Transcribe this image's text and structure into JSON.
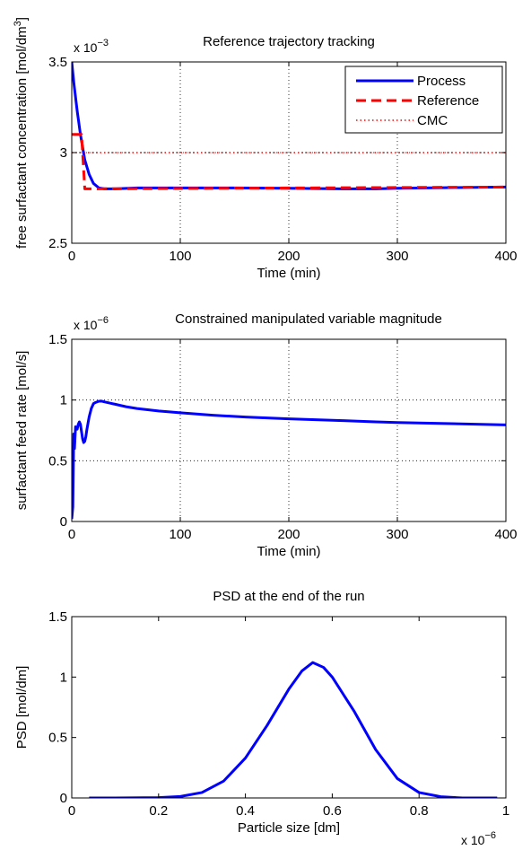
{
  "chart_data": [
    {
      "type": "line",
      "title": "Reference trajectory tracking",
      "xlabel": "Time (min)",
      "ylabel": "free surfactant concentration [mol/dm",
      "ylabel_sup": "3",
      "ylabel_end": "]",
      "y_multiplier": "x 10",
      "y_multiplier_exp": "−3",
      "xlim": [
        0,
        400
      ],
      "ylim": [
        2.5,
        3.5
      ],
      "xticks": [
        0,
        100,
        200,
        300,
        400
      ],
      "xtick_labels": [
        "0",
        "100",
        "200",
        "300",
        "400"
      ],
      "yticks": [
        2.5,
        3,
        3.5
      ],
      "ytick_labels": [
        "2.5",
        "3",
        "3.5"
      ],
      "grid": true,
      "legend_position": "top-right",
      "series": [
        {
          "name": "Process",
          "color": "#0000ff",
          "style": "solid",
          "x": [
            0,
            2,
            5,
            8,
            12,
            16,
            20,
            25,
            30,
            40,
            60,
            100,
            150,
            200,
            250,
            280,
            300,
            350,
            400
          ],
          "y": [
            3.5,
            3.38,
            3.23,
            3.1,
            2.96,
            2.88,
            2.83,
            2.805,
            2.8,
            2.8,
            2.805,
            2.805,
            2.805,
            2.803,
            2.8,
            2.8,
            2.803,
            2.807,
            2.81
          ]
        },
        {
          "name": "Reference",
          "color": "#ff0000",
          "style": "dashed",
          "x": [
            0,
            9,
            12,
            400
          ],
          "y": [
            3.1,
            3.1,
            2.8,
            2.81
          ]
        },
        {
          "name": "CMC",
          "color": "#ff0000",
          "style": "dotted",
          "x": [
            0,
            400
          ],
          "y": [
            3.0,
            3.0
          ]
        }
      ]
    },
    {
      "type": "line",
      "title": "Constrained manipulated variable magnitude",
      "xlabel": "Time (min)",
      "ylabel": "surfactant feed rate [mol/s]",
      "y_multiplier": "x 10",
      "y_multiplier_exp": "−6",
      "xlim": [
        0,
        400
      ],
      "ylim": [
        0,
        1.5
      ],
      "xticks": [
        0,
        100,
        200,
        300,
        400
      ],
      "xtick_labels": [
        "0",
        "100",
        "200",
        "300",
        "400"
      ],
      "yticks": [
        0,
        0.5,
        1,
        1.5
      ],
      "ytick_labels": [
        "0",
        "0.5",
        "1",
        "1.5"
      ],
      "grid": true,
      "series": [
        {
          "color": "#0000ff",
          "style": "solid",
          "x": [
            0,
            1,
            1.8,
            2.5,
            3.5,
            5,
            6,
            7,
            8,
            9,
            10,
            11,
            12,
            13,
            14,
            16,
            18,
            20,
            22,
            25,
            28,
            30,
            35,
            40,
            50,
            60,
            80,
            100,
            130,
            160,
            200,
            250,
            280,
            300,
            350,
            400
          ],
          "y": [
            0.02,
            0.12,
            0.72,
            0.6,
            0.78,
            0.76,
            0.8,
            0.82,
            0.8,
            0.74,
            0.68,
            0.65,
            0.66,
            0.7,
            0.76,
            0.86,
            0.93,
            0.97,
            0.98,
            0.99,
            0.99,
            0.985,
            0.975,
            0.965,
            0.945,
            0.93,
            0.91,
            0.895,
            0.875,
            0.86,
            0.845,
            0.83,
            0.82,
            0.815,
            0.805,
            0.795
          ]
        }
      ]
    },
    {
      "type": "line",
      "title": "PSD at the end of the run",
      "xlabel": "Particle size [dm]",
      "ylabel": "PSD [mol/dm]",
      "x_multiplier": "x 10",
      "x_multiplier_exp": "−6",
      "xlim": [
        0,
        1
      ],
      "ylim": [
        0,
        1.5
      ],
      "xticks": [
        0,
        0.2,
        0.4,
        0.6,
        0.8,
        1
      ],
      "xtick_labels": [
        "0",
        "0.2",
        "0.4",
        "0.6",
        "0.8",
        "1"
      ],
      "yticks": [
        0,
        0.5,
        1,
        1.5
      ],
      "ytick_labels": [
        "0",
        "0.5",
        "1",
        "1.5"
      ],
      "grid": false,
      "series": [
        {
          "color": "#0000ff",
          "style": "solid",
          "x": [
            0.04,
            0.1,
            0.2,
            0.25,
            0.3,
            0.35,
            0.4,
            0.45,
            0.5,
            0.53,
            0.555,
            0.58,
            0.6,
            0.65,
            0.7,
            0.75,
            0.8,
            0.85,
            0.9,
            0.95,
            0.98
          ],
          "y": [
            0.0,
            0.0,
            0.003,
            0.012,
            0.045,
            0.14,
            0.33,
            0.6,
            0.9,
            1.05,
            1.12,
            1.08,
            1.0,
            0.72,
            0.4,
            0.16,
            0.045,
            0.01,
            0.0,
            0.0,
            0.0
          ]
        }
      ]
    }
  ]
}
